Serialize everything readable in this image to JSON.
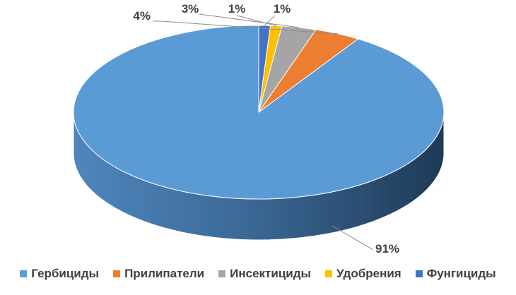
{
  "chart_data": {
    "type": "pie",
    "style": "3d",
    "categories": [
      "Гербициды",
      "Прилипатели",
      "Инсектициды",
      "Удобрения",
      "Фунгициды"
    ],
    "values": [
      91,
      4,
      3,
      1,
      1
    ],
    "data_labels": [
      "91%",
      "4%",
      "3%",
      "1%",
      "1%"
    ],
    "colors": [
      "#5B9BD5",
      "#ED7D31",
      "#A5A5A5",
      "#FFC000",
      "#4472C4"
    ],
    "legend_position": "bottom"
  }
}
